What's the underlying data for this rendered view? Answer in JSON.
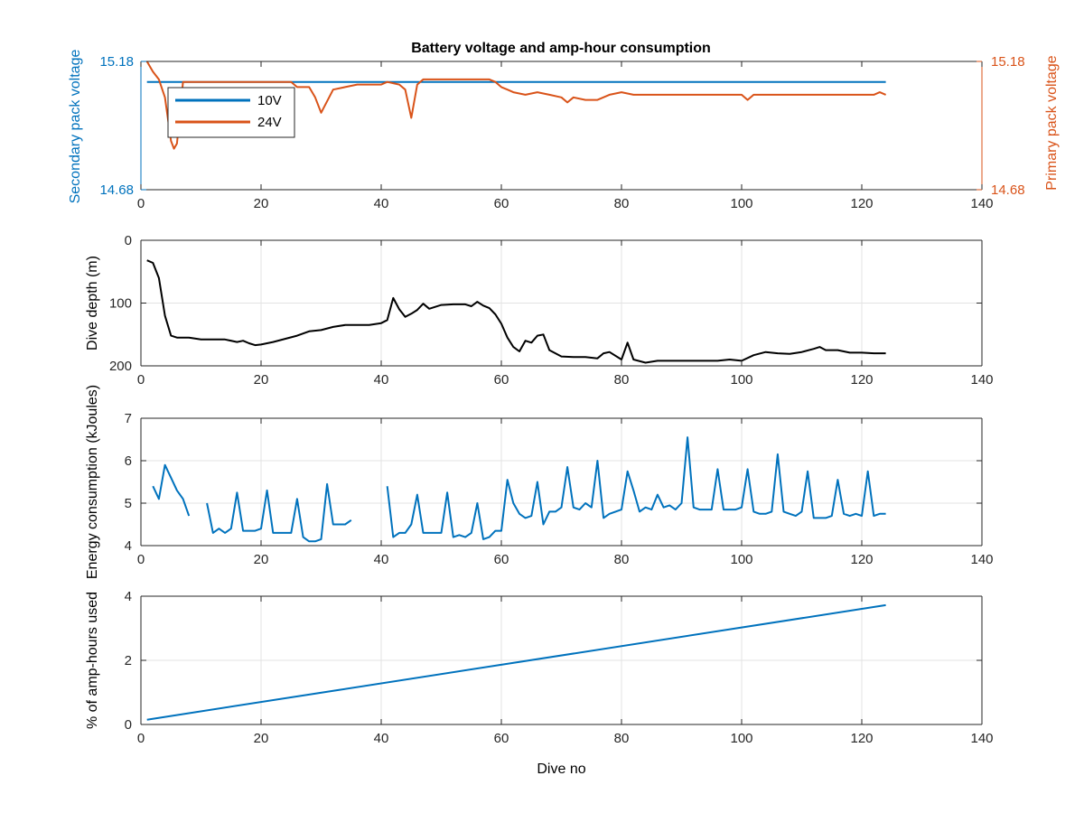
{
  "figure": {
    "title": "Battery voltage and amp-hour consumption"
  },
  "colors": {
    "blue": "#0072BD",
    "orange": "#D95319",
    "black": "#000000",
    "grid": "#e3e3e3",
    "axis": "#262626"
  },
  "chart_data": [
    {
      "type": "line",
      "title": "Battery voltage and amp-hour consumption",
      "xlabel": "",
      "ylabel_left": "Secondary pack voltage",
      "ylabel_right": "Primary pack voltage",
      "xlim": [
        0,
        140
      ],
      "xticks": [
        0,
        20,
        40,
        60,
        80,
        100,
        120,
        140
      ],
      "ylim": [
        14.68,
        15.18
      ],
      "yticks_left": [
        "14.68",
        "15.18"
      ],
      "yticks_right": [
        "14.68",
        "15.18"
      ],
      "grid": false,
      "legend": {
        "location": "top-left",
        "entries": [
          "10V",
          "24V"
        ]
      },
      "series": [
        {
          "name": "10V",
          "axis": "left",
          "color": "#0072BD",
          "x": [
            1,
            124
          ],
          "y": [
            15.1,
            15.1
          ]
        },
        {
          "name": "24V",
          "axis": "right",
          "color": "#D95319",
          "x": [
            1,
            2,
            3,
            4,
            5,
            5.5,
            6,
            7,
            8,
            9,
            10,
            12,
            14,
            16,
            18,
            20,
            22,
            24,
            25,
            26,
            28,
            29,
            30,
            32,
            34,
            36,
            38,
            40,
            41,
            43,
            44,
            45,
            46,
            47,
            48,
            50,
            52,
            54,
            56,
            57,
            58,
            59,
            60,
            61,
            62,
            64,
            66,
            68,
            70,
            71,
            72,
            74,
            76,
            78,
            80,
            82,
            84,
            86,
            88,
            90,
            92,
            94,
            96,
            98,
            100,
            101,
            102,
            104,
            106,
            108,
            110,
            112,
            114,
            116,
            118,
            120,
            122,
            123,
            124
          ],
          "y": [
            15.18,
            15.14,
            15.11,
            15.04,
            14.87,
            14.84,
            14.86,
            15.1,
            15.1,
            15.1,
            15.1,
            15.1,
            15.1,
            15.1,
            15.1,
            15.1,
            15.1,
            15.1,
            15.1,
            15.08,
            15.08,
            15.04,
            14.98,
            15.07,
            15.08,
            15.09,
            15.09,
            15.09,
            15.1,
            15.09,
            15.07,
            14.96,
            15.09,
            15.11,
            15.11,
            15.11,
            15.11,
            15.11,
            15.11,
            15.11,
            15.11,
            15.1,
            15.08,
            15.07,
            15.06,
            15.05,
            15.06,
            15.05,
            15.04,
            15.02,
            15.04,
            15.03,
            15.03,
            15.05,
            15.06,
            15.05,
            15.05,
            15.05,
            15.05,
            15.05,
            15.05,
            15.05,
            15.05,
            15.05,
            15.05,
            15.03,
            15.05,
            15.05,
            15.05,
            15.05,
            15.05,
            15.05,
            15.05,
            15.05,
            15.05,
            15.05,
            15.05,
            15.06,
            15.05
          ]
        }
      ]
    },
    {
      "type": "line",
      "xlabel": "",
      "ylabel": "Dive depth (m)",
      "xlim": [
        0,
        140
      ],
      "xticks": [
        0,
        20,
        40,
        60,
        80,
        100,
        120,
        140
      ],
      "ylim": [
        0,
        200
      ],
      "y_reversed": true,
      "yticks": [
        0,
        100,
        200
      ],
      "grid": true,
      "series": [
        {
          "color": "#000000",
          "x": [
            1,
            2,
            3,
            4,
            5,
            6,
            8,
            10,
            12,
            14,
            16,
            17,
            18,
            19,
            20,
            22,
            24,
            26,
            28,
            30,
            32,
            34,
            36,
            38,
            40,
            41,
            42,
            43,
            44,
            45,
            46,
            47,
            48,
            50,
            52,
            54,
            55,
            56,
            57,
            58,
            59,
            60,
            61,
            62,
            63,
            64,
            65,
            66,
            67,
            68,
            70,
            72,
            74,
            76,
            77,
            78,
            80,
            81,
            82,
            84,
            86,
            88,
            90,
            92,
            94,
            96,
            98,
            100,
            102,
            104,
            106,
            108,
            110,
            112,
            113,
            114,
            116,
            118,
            120,
            122,
            124
          ],
          "y": [
            32,
            36,
            60,
            120,
            152,
            155,
            155,
            158,
            158,
            158,
            162,
            160,
            164,
            167,
            166,
            162,
            157,
            152,
            145,
            143,
            138,
            135,
            135,
            135,
            132,
            127,
            92,
            110,
            122,
            117,
            111,
            101,
            109,
            103,
            102,
            102,
            105,
            98,
            104,
            108,
            118,
            133,
            155,
            170,
            177,
            160,
            163,
            152,
            150,
            175,
            185,
            186,
            186,
            188,
            180,
            178,
            190,
            163,
            190,
            195,
            192,
            192,
            192,
            192,
            192,
            192,
            190,
            192,
            183,
            178,
            180,
            181,
            178,
            173,
            170,
            175,
            175,
            179,
            179,
            180,
            180
          ]
        }
      ]
    },
    {
      "type": "line",
      "xlabel": "",
      "ylabel": "Energy consumption (kJoules)",
      "xlim": [
        0,
        140
      ],
      "xticks": [
        0,
        20,
        40,
        60,
        80,
        100,
        120,
        140
      ],
      "ylim": [
        4,
        7
      ],
      "yticks": [
        4,
        5,
        6,
        7
      ],
      "grid": true,
      "series": [
        {
          "color": "#0072BD",
          "segments": [
            {
              "x": [
                2,
                3,
                4,
                5,
                6,
                7,
                8
              ],
              "y": [
                5.4,
                5.1,
                5.9,
                5.6,
                5.3,
                5.1,
                4.7
              ]
            },
            {
              "x": [
                11,
                12,
                13,
                14,
                15,
                16,
                17,
                18,
                19,
                20,
                21,
                22,
                23,
                24,
                25,
                26,
                27,
                28,
                29,
                30,
                31,
                32,
                33,
                34,
                35
              ],
              "y": [
                5.0,
                4.3,
                4.4,
                4.3,
                4.4,
                5.25,
                4.35,
                4.35,
                4.35,
                4.4,
                5.3,
                4.3,
                4.3,
                4.3,
                4.3,
                5.1,
                4.2,
                4.1,
                4.1,
                4.15,
                5.45,
                4.5,
                4.5,
                4.5,
                4.6
              ]
            },
            {
              "x": [
                41,
                42,
                43,
                44,
                45,
                46,
                47,
                48,
                49,
                50,
                51,
                52,
                53,
                54,
                55,
                56,
                57,
                58,
                59,
                60,
                61,
                62,
                63,
                64,
                65,
                66,
                67,
                68,
                69,
                70,
                71,
                72,
                73,
                74,
                75,
                76,
                77,
                78,
                79,
                80,
                81,
                82,
                83,
                84,
                85,
                86,
                87,
                88,
                89,
                90,
                91,
                92,
                93,
                94,
                95,
                96,
                97,
                98,
                99,
                100,
                101,
                102,
                103,
                104,
                105,
                106,
                107,
                108,
                109,
                110,
                111,
                112,
                113,
                114,
                115,
                116,
                117,
                118,
                119,
                120,
                121,
                122,
                123,
                124
              ],
              "y": [
                5.4,
                4.2,
                4.3,
                4.3,
                4.5,
                5.2,
                4.3,
                4.3,
                4.3,
                4.3,
                5.25,
                4.2,
                4.25,
                4.2,
                4.3,
                5.0,
                4.15,
                4.2,
                4.35,
                4.35,
                5.55,
                5.0,
                4.75,
                4.65,
                4.7,
                5.5,
                4.5,
                4.8,
                4.8,
                4.9,
                5.85,
                4.9,
                4.85,
                5.0,
                4.9,
                6.0,
                4.65,
                4.75,
                4.8,
                4.85,
                5.75,
                5.3,
                4.8,
                4.9,
                4.85,
                5.2,
                4.9,
                4.95,
                4.85,
                5.0,
                6.55,
                4.9,
                4.85,
                4.85,
                4.85,
                5.8,
                4.85,
                4.85,
                4.85,
                4.9,
                5.8,
                4.8,
                4.75,
                4.75,
                4.8,
                6.15,
                4.8,
                4.75,
                4.7,
                4.8,
                5.75,
                4.65,
                4.65,
                4.65,
                4.7,
                5.55,
                4.75,
                4.7,
                4.75,
                4.7,
                5.75,
                4.7,
                4.75,
                4.75
              ]
            }
          ]
        }
      ]
    },
    {
      "type": "line",
      "xlabel": "Dive no",
      "ylabel": "% of amp-hours used",
      "xlim": [
        0,
        140
      ],
      "xticks": [
        0,
        20,
        40,
        60,
        80,
        100,
        120,
        140
      ],
      "ylim": [
        0,
        4
      ],
      "yticks": [
        0,
        2,
        4
      ],
      "grid": true,
      "series": [
        {
          "color": "#0072BD",
          "x": [
            1,
            124
          ],
          "y": [
            0.15,
            3.72
          ]
        }
      ]
    }
  ]
}
